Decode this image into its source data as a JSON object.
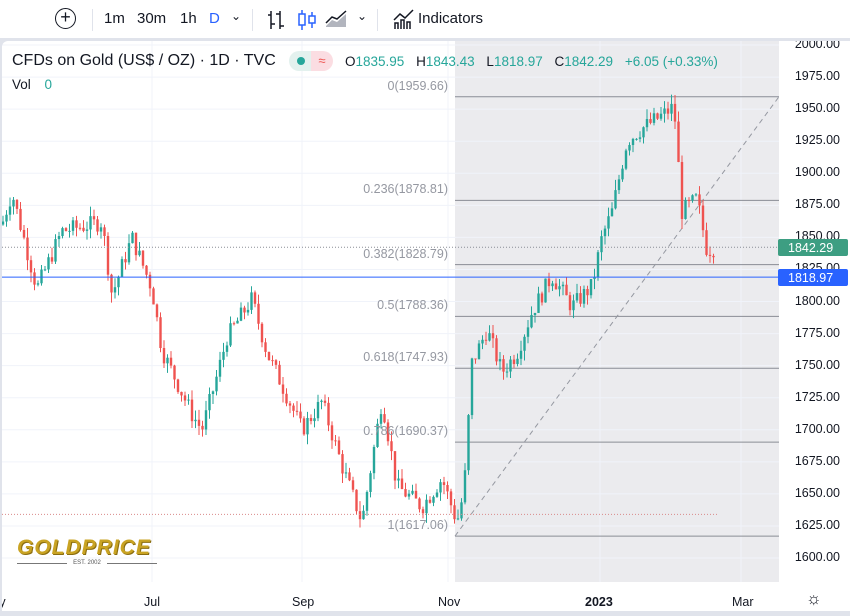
{
  "toolbar": {
    "intervals": [
      "1m",
      "30m",
      "1h",
      "D"
    ],
    "active_interval": "D",
    "indicators_label": "Indicators"
  },
  "legend": {
    "title": "CFDs on Gold (US$ / OZ) · 1D · TVC",
    "o_label": "O",
    "o": "1835.95",
    "h_label": "H",
    "h": "1843.43",
    "l_label": "L",
    "l": "1818.97",
    "c_label": "C",
    "c": "1842.29",
    "change": "+6.05 (+0.33%)",
    "vol_label": "Vol",
    "vol": "0"
  },
  "fib_levels": [
    {
      "label": "0(1959.66)",
      "price": 1959.66
    },
    {
      "label": "0.236(1878.81)",
      "price": 1878.81
    },
    {
      "label": "0.382(1828.79)",
      "price": 1828.79
    },
    {
      "label": "0.5(1788.36)",
      "price": 1788.36
    },
    {
      "label": "0.618(1747.93)",
      "price": 1747.93
    },
    {
      "label": "0.786(1690.37)",
      "price": 1690.37
    },
    {
      "label": "1(1617.06)",
      "price": 1617.06
    }
  ],
  "price_axis": [
    "2000.00",
    "1975.00",
    "1950.00",
    "1925.00",
    "1900.00",
    "1875.00",
    "1850.00",
    "1825.00",
    "1800.00",
    "1775.00",
    "1750.00",
    "1725.00",
    "1700.00",
    "1675.00",
    "1650.00",
    "1625.00",
    "1600.00"
  ],
  "price_labels": {
    "last": "1842.29",
    "low": "1818.97"
  },
  "time_axis": [
    "May",
    "Jul",
    "Sep",
    "Nov",
    "2023",
    "Mar"
  ],
  "logo": {
    "text": "GOLDPRICE",
    "sub": "EST. 2002"
  },
  "colors": {
    "up": "#26a69a",
    "down": "#ef5350",
    "blue": "#2962ff",
    "shade": "#ebebee"
  },
  "chart_data": {
    "type": "candlestick",
    "ylim": [
      1590,
      2005
    ],
    "approx_close_path": [
      [
        0,
        1860
      ],
      [
        10,
        1885
      ],
      [
        35,
        1810
      ],
      [
        60,
        1855
      ],
      [
        100,
        1862
      ],
      [
        110,
        1805
      ],
      [
        130,
        1850
      ],
      [
        150,
        1810
      ],
      [
        160,
        1762
      ],
      [
        190,
        1712
      ],
      [
        200,
        1700
      ],
      [
        215,
        1742
      ],
      [
        225,
        1772
      ],
      [
        250,
        1802
      ],
      [
        265,
        1760
      ],
      [
        280,
        1735
      ],
      [
        300,
        1700
      ],
      [
        320,
        1722
      ],
      [
        340,
        1672
      ],
      [
        360,
        1628
      ],
      [
        380,
        1724
      ],
      [
        395,
        1656
      ],
      [
        420,
        1640
      ],
      [
        440,
        1662
      ],
      [
        455,
        1628
      ],
      [
        462,
        1652
      ],
      [
        470,
        1752
      ],
      [
        485,
        1778
      ],
      [
        500,
        1745
      ],
      [
        515,
        1760
      ],
      [
        530,
        1792
      ],
      [
        550,
        1820
      ],
      [
        570,
        1796
      ],
      [
        590,
        1812
      ],
      [
        600,
        1850
      ],
      [
        610,
        1870
      ],
      [
        625,
        1925
      ],
      [
        640,
        1935
      ],
      [
        660,
        1945
      ],
      [
        672,
        1952
      ],
      [
        680,
        1870
      ],
      [
        695,
        1880
      ],
      [
        705,
        1840
      ],
      [
        715,
        1842.29
      ]
    ]
  }
}
